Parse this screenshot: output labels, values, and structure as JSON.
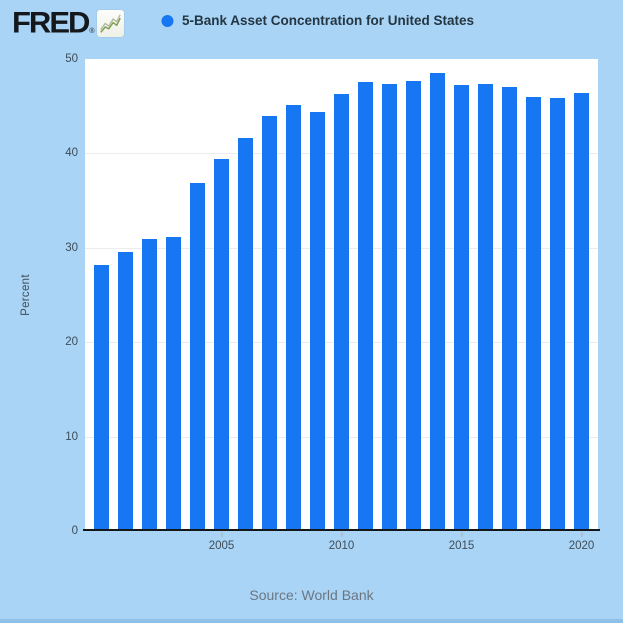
{
  "header": {
    "logo_text": "FRED",
    "registered_mark": "®",
    "series_title": "5-Bank Asset Concentration for United States"
  },
  "chart_data": {
    "type": "bar",
    "title": "5-Bank Asset Concentration for United States",
    "xlabel": "",
    "ylabel": "Percent",
    "ylim": [
      0,
      50
    ],
    "yticks": [
      50,
      40,
      30,
      20,
      10,
      0
    ],
    "gridlines": [
      40,
      30,
      20,
      10
    ],
    "grid": true,
    "legend_position": "top-center",
    "x": [
      2000,
      2001,
      2002,
      2003,
      2004,
      2005,
      2006,
      2007,
      2008,
      2009,
      2010,
      2011,
      2012,
      2013,
      2014,
      2015,
      2016,
      2017,
      2018,
      2019,
      2020
    ],
    "values": [
      28.19,
      29.55,
      30.96,
      31.16,
      36.91,
      39.43,
      41.68,
      44.0,
      45.1,
      44.38,
      46.33,
      47.52,
      47.31,
      47.72,
      48.54,
      47.22,
      47.31,
      47.04,
      45.94,
      45.89,
      46.42
    ],
    "xticks": [
      2005,
      2010,
      2015,
      2020
    ]
  },
  "source": {
    "label": "Source: World Bank"
  },
  "colors": {
    "background": "#a9d4f6",
    "bar": "#1777f2",
    "legend_dot": "#1777f2",
    "plot_background": "#ffffff",
    "gridline": "#ececec",
    "axis_line": "#15181b",
    "tick_text": "#3e4d58",
    "title_text": "#243642",
    "source_text": "#6b7681"
  }
}
